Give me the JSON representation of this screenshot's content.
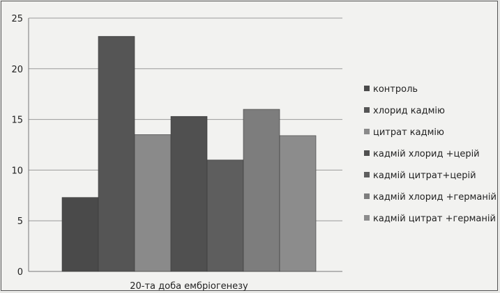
{
  "chart_data": {
    "type": "bar",
    "categories": [
      "20-та доба ембріогенезу"
    ],
    "series": [
      {
        "name": "контроль",
        "values": [
          7.3
        ],
        "color": "#4a4a4a"
      },
      {
        "name": "хлорид кадмію",
        "values": [
          23.2
        ],
        "color": "#555555"
      },
      {
        "name": "цитрат кадмію",
        "values": [
          13.5
        ],
        "color": "#8a8a8a"
      },
      {
        "name": "кадмій хлорид +церій",
        "values": [
          15.3
        ],
        "color": "#505050"
      },
      {
        "name": "кадмій цитрат+церій",
        "values": [
          11.0
        ],
        "color": "#5e5e5e"
      },
      {
        "name": "кадмій хлорид +германій",
        "values": [
          16.0
        ],
        "color": "#7d7d7d"
      },
      {
        "name": "кадмій цитрат +германій",
        "values": [
          13.4
        ],
        "color": "#8c8c8c"
      }
    ],
    "title": "",
    "xlabel": "",
    "ylabel": "",
    "ylim": [
      0,
      25
    ],
    "yticks": [
      0,
      5,
      10,
      15,
      20,
      25
    ],
    "grid": true,
    "legend": "right"
  }
}
